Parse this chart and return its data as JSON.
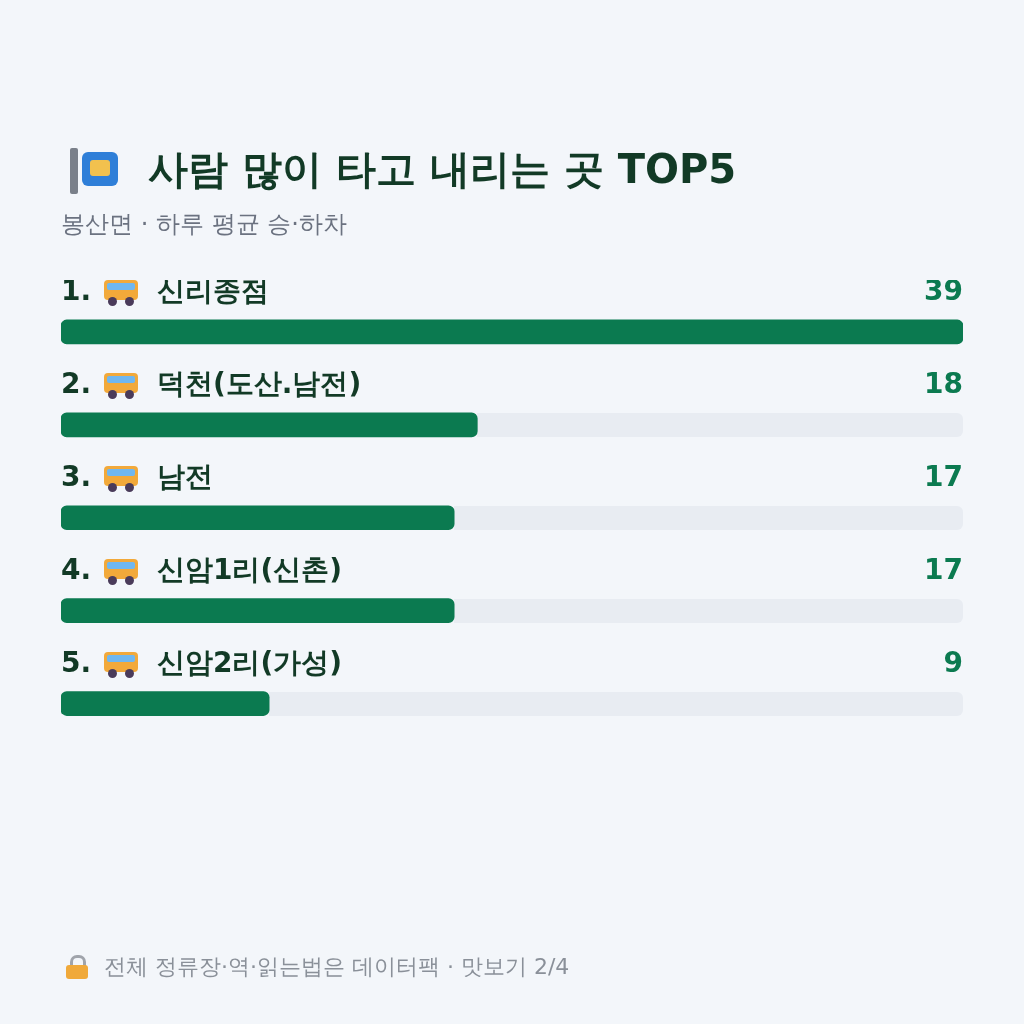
{
  "chart_data": {
    "type": "bar",
    "orientation": "horizontal",
    "title": "사람 많이 타고 내리는 곳 TOP5",
    "subtitle": "봉산면 · 하루 평균 승·하차",
    "categories": [
      "1. 신리종점",
      "2. 덕천(도산.남전)",
      "3. 남전",
      "4. 신암1리(신촌)",
      "5. 신암2리(가성)"
    ],
    "values": [
      39,
      18,
      17,
      17,
      9
    ],
    "color": "#0b7a50",
    "xlim": [
      0,
      39
    ],
    "data_labels": true,
    "legend": false,
    "annotations": [
      "전체 정류장·역·읽는법은 데이터팩 · 맛보기 2/4"
    ]
  }
}
